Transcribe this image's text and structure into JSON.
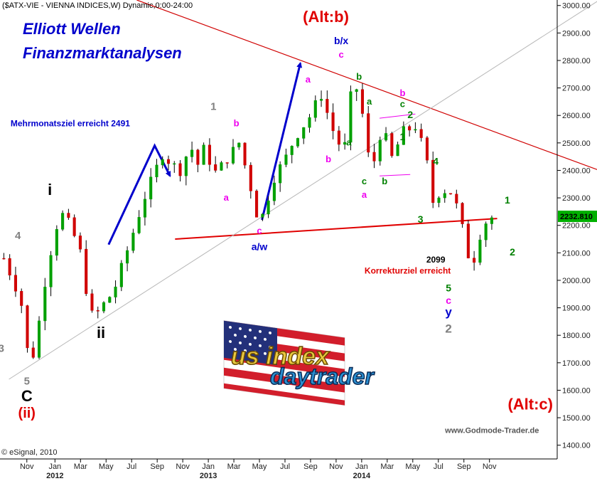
{
  "chart_data": {
    "type": "candlestick",
    "header": "($ATX-VIE - VIENNA INDICES,W) Dynamic,0:00-24:00",
    "title_lines": [
      "Elliott Wellen",
      "Finanzmarktanalysen"
    ],
    "ylim": [
      1350,
      3020
    ],
    "y_ticks": [
      1400,
      1500,
      1600,
      1700,
      1800,
      1900,
      2000,
      2100,
      2200,
      2300,
      2400,
      2500,
      2600,
      2700,
      2800,
      2900,
      3000
    ],
    "y_tick_labels": [
      "1400.00",
      "1500.00",
      "1600.00",
      "1700.00",
      "1800.00",
      "1900.00",
      "2000.00",
      "2100.00",
      "2200.00",
      "2300.00",
      "2400.00",
      "2500.00",
      "2600.00",
      "2700.00",
      "2800.00",
      "2900.00",
      "3000.00"
    ],
    "last_price": 2232.81,
    "last_price_label": "2232.810",
    "x_months": [
      {
        "label": "Nov",
        "t": 0.9
      },
      {
        "label": "Jan",
        "t": 2.0
      },
      {
        "label": "Mar",
        "t": 3.0
      },
      {
        "label": "May",
        "t": 4.0
      },
      {
        "label": "Jul",
        "t": 5.0
      },
      {
        "label": "Sep",
        "t": 6.0
      },
      {
        "label": "Nov",
        "t": 7.0
      },
      {
        "label": "Jan",
        "t": 8.0
      },
      {
        "label": "Mar",
        "t": 9.0
      },
      {
        "label": "May",
        "t": 10.0
      },
      {
        "label": "Jul",
        "t": 11.0
      },
      {
        "label": "Sep",
        "t": 12.0
      },
      {
        "label": "Nov",
        "t": 13.0
      },
      {
        "label": "Jan",
        "t": 14.0
      },
      {
        "label": "Mar",
        "t": 15.0
      },
      {
        "label": "May",
        "t": 16.0
      },
      {
        "label": "Jul",
        "t": 17.0
      },
      {
        "label": "Sep",
        "t": 18.0
      },
      {
        "label": "Nov",
        "t": 19.0
      }
    ],
    "x_years": [
      {
        "label": "2012",
        "t": 2.0
      },
      {
        "label": "2013",
        "t": 8.0
      },
      {
        "label": "2014",
        "t": 14.0
      }
    ],
    "anchors": [
      {
        "t": 0.0,
        "v": 2080
      },
      {
        "t": 0.45,
        "v": 1980
      },
      {
        "t": 0.8,
        "v": 1880
      },
      {
        "t": 1.0,
        "v": 1660
      },
      {
        "t": 1.3,
        "v": 1800
      },
      {
        "t": 1.7,
        "v": 2050
      },
      {
        "t": 2.2,
        "v": 2250
      },
      {
        "t": 2.6,
        "v": 2200
      },
      {
        "t": 3.0,
        "v": 2100
      },
      {
        "t": 3.3,
        "v": 1920
      },
      {
        "t": 3.5,
        "v": 1860
      },
      {
        "t": 3.8,
        "v": 1900
      },
      {
        "t": 4.3,
        "v": 1960
      },
      {
        "t": 4.8,
        "v": 2100
      },
      {
        "t": 5.5,
        "v": 2300
      },
      {
        "t": 6.2,
        "v": 2460
      },
      {
        "t": 6.6,
        "v": 2420
      },
      {
        "t": 6.9,
        "v": 2400
      },
      {
        "t": 7.3,
        "v": 2490
      },
      {
        "t": 7.6,
        "v": 2420
      },
      {
        "t": 7.8,
        "v": 2480
      },
      {
        "t": 8.3,
        "v": 2390
      },
      {
        "t": 8.8,
        "v": 2450
      },
      {
        "t": 9.2,
        "v": 2500
      },
      {
        "t": 9.6,
        "v": 2360
      },
      {
        "t": 10.0,
        "v": 2200
      },
      {
        "t": 10.2,
        "v": 2260
      },
      {
        "t": 10.6,
        "v": 2380
      },
      {
        "t": 11.0,
        "v": 2440
      },
      {
        "t": 11.4,
        "v": 2520
      },
      {
        "t": 12.0,
        "v": 2600
      },
      {
        "t": 12.4,
        "v": 2680
      },
      {
        "t": 12.9,
        "v": 2540
      },
      {
        "t": 13.3,
        "v": 2460
      },
      {
        "t": 13.6,
        "v": 2690
      },
      {
        "t": 13.9,
        "v": 2700
      },
      {
        "t": 14.2,
        "v": 2480
      },
      {
        "t": 14.4,
        "v": 2400
      },
      {
        "t": 14.8,
        "v": 2560
      },
      {
        "t": 15.2,
        "v": 2440
      },
      {
        "t": 15.6,
        "v": 2540
      },
      {
        "t": 16.1,
        "v": 2560
      },
      {
        "t": 16.5,
        "v": 2460
      },
      {
        "t": 16.8,
        "v": 2280
      },
      {
        "t": 17.1,
        "v": 2330
      },
      {
        "t": 17.5,
        "v": 2320
      },
      {
        "t": 17.8,
        "v": 2250
      },
      {
        "t": 18.1,
        "v": 2120
      },
      {
        "t": 18.3,
        "v": 2040
      },
      {
        "t": 18.6,
        "v": 2160
      },
      {
        "t": 18.9,
        "v": 2220
      },
      {
        "t": 19.2,
        "v": 2232.81
      }
    ],
    "lines": [
      {
        "kind": "resistance",
        "color": "#d00000",
        "width": 1.2,
        "points": [
          {
            "t": 5.2,
            "v": 3020
          },
          {
            "t": 23.3,
            "v": 2400
          }
        ]
      },
      {
        "kind": "support",
        "color": "#e00000",
        "width": 2,
        "points": [
          {
            "t": 6.7,
            "v": 2150
          },
          {
            "t": 19.3,
            "v": 2225
          }
        ]
      },
      {
        "kind": "channel",
        "color": "#b8b8b8",
        "width": 1,
        "points": [
          {
            "t": 0.2,
            "v": 1640
          },
          {
            "t": 23.3,
            "v": 3020
          }
        ]
      },
      {
        "kind": "arrow1",
        "color": "#0000cc",
        "width": 3,
        "arrow": true,
        "points": [
          {
            "t": 4.1,
            "v": 2130
          },
          {
            "t": 5.9,
            "v": 2490
          },
          {
            "t": 6.5,
            "v": 2380
          }
        ]
      },
      {
        "kind": "arrow2",
        "color": "#0000cc",
        "width": 3,
        "arrow": true,
        "points": [
          {
            "t": 10.1,
            "v": 2220
          },
          {
            "t": 11.6,
            "v": 2790
          }
        ]
      },
      {
        "kind": "flag-top",
        "color": "#ee00ee",
        "width": 1,
        "points": [
          {
            "t": 14.7,
            "v": 2590
          },
          {
            "t": 16.1,
            "v": 2605
          }
        ]
      },
      {
        "kind": "flag-bottom",
        "color": "#ee00ee",
        "width": 1,
        "points": [
          {
            "t": 14.7,
            "v": 2380
          },
          {
            "t": 15.9,
            "v": 2385
          }
        ]
      }
    ],
    "annotations": [
      {
        "text": "(Alt:b)",
        "t": 12.6,
        "v": 2940,
        "color": "#e00000",
        "size": 22
      },
      {
        "text": "(Alt:c)",
        "t": 20.6,
        "v": 1530,
        "color": "#e00000",
        "size": 22
      },
      {
        "text": "Mehrmonatsziel erreicht 2491",
        "t": 2.6,
        "v": 2560,
        "color": "#0000cc",
        "size": 12
      },
      {
        "text": "Korrekturziel erreicht",
        "t": 15.8,
        "v": 2025,
        "color": "#e00000",
        "size": 12
      },
      {
        "text": "2099",
        "t": 16.9,
        "v": 2065,
        "color": "#000000",
        "size": 12
      },
      {
        "text": "www.Godmode-Trader.de",
        "t": 19.1,
        "v": 1445,
        "color": "#555555",
        "size": 11
      },
      {
        "text": "i",
        "t": 1.8,
        "v": 2310,
        "color": "#000000",
        "size": 22
      },
      {
        "text": "ii",
        "t": 3.8,
        "v": 1790,
        "color": "#000000",
        "size": 22
      },
      {
        "text": "C",
        "t": 0.9,
        "v": 1560,
        "color": "#000000",
        "size": 22
      },
      {
        "text": "(ii)",
        "t": 0.9,
        "v": 1500,
        "color": "#e00000",
        "size": 20
      },
      {
        "text": "4",
        "t": 0.55,
        "v": 2150,
        "color": "#808080",
        "size": 15
      },
      {
        "text": "5",
        "t": 0.9,
        "v": 1620,
        "color": "#808080",
        "size": 15
      },
      {
        "text": "3",
        "t": -0.1,
        "v": 1740,
        "color": "#808080",
        "size": 15
      },
      {
        "text": "1",
        "t": 8.2,
        "v": 2620,
        "color": "#808080",
        "size": 15
      },
      {
        "text": "b",
        "t": 9.1,
        "v": 2560,
        "color": "#ee00ee",
        "size": 13
      },
      {
        "text": "a",
        "t": 8.7,
        "v": 2290,
        "color": "#ee00ee",
        "size": 13
      },
      {
        "text": "c",
        "t": 10.0,
        "v": 2170,
        "color": "#ee00ee",
        "size": 13
      },
      {
        "text": "a/w",
        "t": 10.0,
        "v": 2110,
        "color": "#0000cc",
        "size": 14
      },
      {
        "text": "a",
        "t": 11.9,
        "v": 2720,
        "color": "#ee00ee",
        "size": 13
      },
      {
        "text": "b",
        "t": 12.7,
        "v": 2430,
        "color": "#ee00ee",
        "size": 13
      },
      {
        "text": "b/x",
        "t": 13.2,
        "v": 2860,
        "color": "#0000cc",
        "size": 14
      },
      {
        "text": "c",
        "t": 13.2,
        "v": 2810,
        "color": "#ee00ee",
        "size": 13
      },
      {
        "text": "b",
        "t": 13.9,
        "v": 2730,
        "color": "#008000",
        "size": 13
      },
      {
        "text": "a",
        "t": 13.5,
        "v": 2490,
        "color": "#008000",
        "size": 13
      },
      {
        "text": "a",
        "t": 14.3,
        "v": 2640,
        "color": "#008000",
        "size": 13
      },
      {
        "text": "c",
        "t": 14.1,
        "v": 2350,
        "color": "#008000",
        "size": 13
      },
      {
        "text": "a",
        "t": 14.1,
        "v": 2300,
        "color": "#ee00ee",
        "size": 13
      },
      {
        "text": "b",
        "t": 14.9,
        "v": 2350,
        "color": "#008000",
        "size": 13
      },
      {
        "text": "b",
        "t": 15.6,
        "v": 2670,
        "color": "#ee00ee",
        "size": 13
      },
      {
        "text": "c",
        "t": 15.6,
        "v": 2630,
        "color": "#008000",
        "size": 13
      },
      {
        "text": "1",
        "t": 15.6,
        "v": 2510,
        "color": "#008000",
        "size": 14
      },
      {
        "text": "2",
        "t": 15.9,
        "v": 2590,
        "color": "#008000",
        "size": 14
      },
      {
        "text": "4",
        "t": 16.9,
        "v": 2420,
        "color": "#008000",
        "size": 14
      },
      {
        "text": "3",
        "t": 16.3,
        "v": 2210,
        "color": "#008000",
        "size": 14
      },
      {
        "text": "1",
        "t": 19.7,
        "v": 2280,
        "color": "#008000",
        "size": 14
      },
      {
        "text": "2",
        "t": 19.9,
        "v": 2090,
        "color": "#008000",
        "size": 14
      },
      {
        "text": "5",
        "t": 17.4,
        "v": 1960,
        "color": "#008000",
        "size": 14
      },
      {
        "text": "c",
        "t": 17.4,
        "v": 1915,
        "color": "#ee00ee",
        "size": 14
      },
      {
        "text": "y",
        "t": 17.4,
        "v": 1870,
        "color": "#0000cc",
        "size": 17
      },
      {
        "text": "2",
        "t": 17.4,
        "v": 1810,
        "color": "#808080",
        "size": 17
      }
    ],
    "copyright": "© eSignal, 2010",
    "logo_text": [
      "us index",
      "daytrader"
    ]
  },
  "colors": {
    "up": "#00a000",
    "down": "#d00000",
    "blue": "#0000cc",
    "red": "#e00000",
    "grid": "#ffffff"
  }
}
